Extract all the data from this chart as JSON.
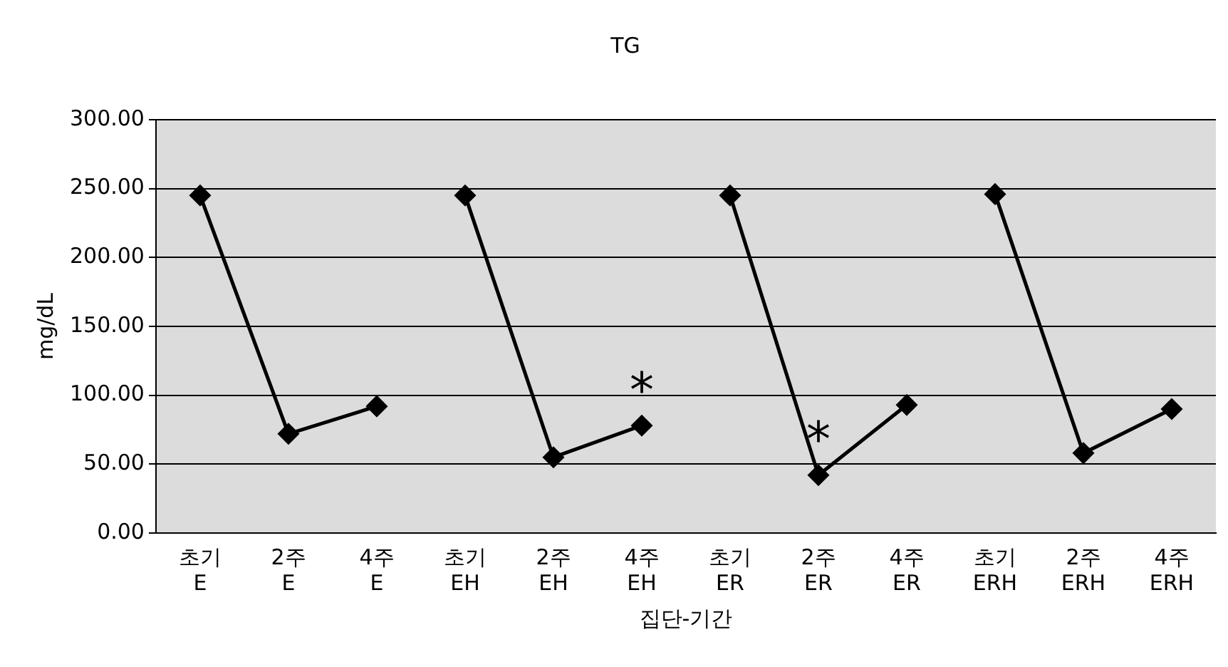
{
  "chart_data": {
    "type": "line",
    "title": "TG",
    "xlabel": "집단-기간",
    "ylabel": "mg/dL",
    "categories": [
      "초기\nE",
      "2주\nE",
      "4주\nE",
      "초기\nEH",
      "2주\nEH",
      "4주\nEH",
      "초기\nER",
      "2주\nER",
      "4주\nER",
      "초기\nERH",
      "2주\nERH",
      "4주\nERH"
    ],
    "series": [
      {
        "color": "#000000",
        "values": [
          245,
          72,
          92,
          null,
          null,
          null,
          null,
          null,
          null,
          null,
          null,
          null
        ]
      },
      {
        "color": "#000000",
        "values": [
          null,
          null,
          null,
          245,
          55,
          78,
          null,
          null,
          null,
          null,
          null,
          null
        ]
      },
      {
        "color": "#000000",
        "values": [
          null,
          null,
          null,
          null,
          null,
          null,
          245,
          42,
          93,
          null,
          null,
          null
        ]
      },
      {
        "color": "#000000",
        "values": [
          null,
          null,
          null,
          null,
          null,
          null,
          null,
          null,
          null,
          246,
          58,
          90
        ]
      }
    ],
    "ylim": [
      0,
      300
    ],
    "yticks": [
      {
        "value": 0,
        "label": "0.00"
      },
      {
        "value": 50,
        "label": "50.00"
      },
      {
        "value": 100,
        "label": "100.00"
      },
      {
        "value": 150,
        "label": "150.00"
      },
      {
        "value": 200,
        "label": "200.00"
      },
      {
        "value": 250,
        "label": "250.00"
      },
      {
        "value": 300,
        "label": "300.00"
      }
    ],
    "grid": "y",
    "legend": false,
    "marker": "diamond",
    "line_style": "solid",
    "annotations": [
      {
        "text": "*",
        "x": "4주\nEH",
        "y": 78
      },
      {
        "text": "*",
        "x": "2주\nER",
        "y": 42
      }
    ]
  }
}
